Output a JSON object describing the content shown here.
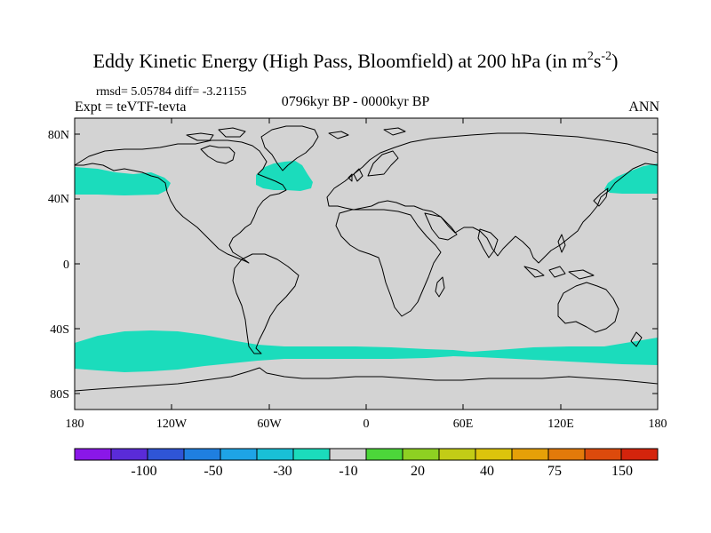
{
  "header": {
    "title_main": "Eddy Kinetic Energy (High Pass, Bloomfield) at 200 hPa (in m",
    "title_sup1": "2",
    "title_mid": "s",
    "title_sup2": "-2",
    "title_end": ")",
    "stats": "rmsd= 5.05784 diff= -3.21155",
    "experiment": "Expt = teVTF-tevta",
    "period": "0796kyr BP - 0000kyr BP",
    "season": "ANN"
  },
  "map": {
    "lat_labels": [
      "80N",
      "40N",
      "0",
      "40S",
      "80S"
    ],
    "lon_labels": [
      "180",
      "120W",
      "60W",
      "0",
      "60E",
      "120E",
      "180"
    ],
    "field_regions": [
      {
        "name": "north-pacific-east",
        "class": "-20 to -10"
      },
      {
        "name": "north-atlantic",
        "class": "-20 to -10"
      },
      {
        "name": "north-pacific-west",
        "class": "-20 to -10"
      },
      {
        "name": "southern-ocean-pacific",
        "class": "-20 to -10"
      },
      {
        "name": "southern-ocean-indian",
        "class": "-20 to -10"
      }
    ],
    "colors": {
      "background_field": "#d3d3d3",
      "anomaly_band": "#1bdcbc",
      "coastline": "#000000"
    }
  },
  "colorbar": {
    "colors": [
      "#8a17e8",
      "#5a2bd8",
      "#2f55d6",
      "#1f7fe0",
      "#1ea4e6",
      "#19c0d6",
      "#1bdcbc",
      "#d3d3d3",
      "#4cd63a",
      "#8ed022",
      "#c2cc16",
      "#dcc40c",
      "#e6a008",
      "#e37a0a",
      "#dc4a0c",
      "#d4240c"
    ],
    "labels": [
      "-100",
      "-50",
      "-30",
      "-10",
      "20",
      "40",
      "75",
      "150"
    ]
  }
}
